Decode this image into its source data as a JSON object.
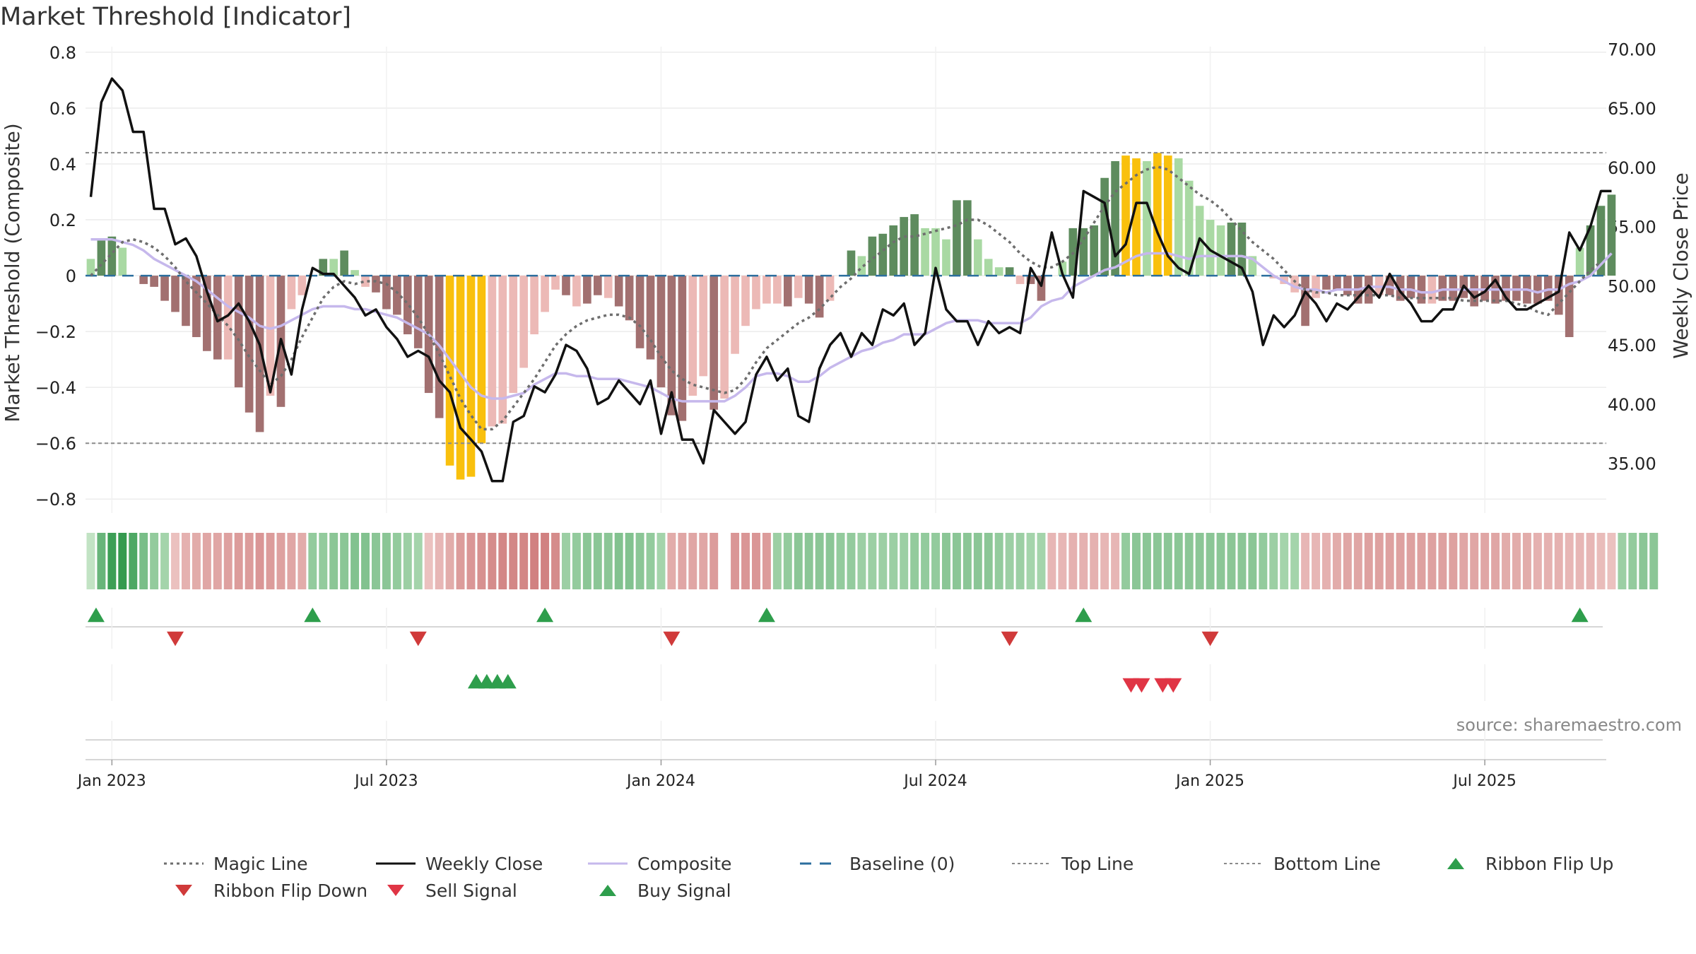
{
  "title": "Market Threshold [Indicator]",
  "source_note": "source: sharemaestro.com",
  "colors": {
    "bull_dark": "#5e8c5e",
    "bull_light": "#a9d9a3",
    "bear_dark": "#a27070",
    "bear_light": "#ecb9b6",
    "extreme": "#f9c00d",
    "close": "#111111",
    "composite": "#c6b8ec",
    "magic": "#6e6e6e",
    "baseline": "#2b6e9e",
    "threshold": "#8a8a8a",
    "buy": "#2e9e4c",
    "sell": "#e03545"
  },
  "chart_data": {
    "type": "bar",
    "title": "Market Threshold [Indicator]",
    "ylabel_left": "Market Threshold (Composite)",
    "ylabel_right": "Weekly Close Price",
    "ylim_left": [
      -0.85,
      0.82
    ],
    "ylim_right": [
      30.8,
      70.2
    ],
    "yticks_left": [
      "0.8",
      "0.6",
      "0.4",
      "0.2",
      "0",
      "−0.2",
      "−0.4",
      "−0.6",
      "−0.8"
    ],
    "ytick_values_left": [
      0.8,
      0.6,
      0.4,
      0.2,
      0,
      -0.2,
      -0.4,
      -0.6,
      -0.8
    ],
    "yticks_right": [
      "70.00",
      "65.00",
      "60.00",
      "55.00",
      "50.00",
      "45.00",
      "40.00",
      "35.00"
    ],
    "ytick_values_right": [
      70,
      65,
      60,
      55,
      50,
      45,
      40,
      35
    ],
    "xticks": [
      "Jan 2023",
      "Jul 2023",
      "Jan 2024",
      "Jul 2024",
      "Jan 2025",
      "Jul 2025"
    ],
    "xtick_weeks": [
      2,
      28,
      54,
      80,
      106,
      132
    ],
    "weeks": 144,
    "grid": true,
    "top_line": 0.44,
    "bottom_line": -0.6,
    "baseline": 0,
    "bars": [
      0.06,
      0.13,
      0.14,
      0.1,
      0,
      -0.03,
      -0.04,
      -0.09,
      -0.13,
      -0.18,
      -0.22,
      -0.27,
      -0.3,
      -0.3,
      -0.4,
      -0.49,
      -0.56,
      -0.43,
      -0.47,
      -0.12,
      -0.07,
      0,
      0.06,
      0.06,
      0.09,
      0.02,
      -0.04,
      -0.06,
      -0.12,
      -0.14,
      -0.21,
      -0.26,
      -0.42,
      -0.51,
      -0.68,
      -0.73,
      -0.72,
      -0.6,
      -0.54,
      -0.53,
      -0.42,
      -0.33,
      -0.21,
      -0.13,
      -0.05,
      -0.07,
      -0.11,
      -0.1,
      -0.07,
      -0.08,
      -0.11,
      -0.16,
      -0.26,
      -0.3,
      -0.4,
      -0.5,
      -0.52,
      -0.43,
      -0.36,
      -0.48,
      -0.44,
      -0.28,
      -0.18,
      -0.12,
      -0.1,
      -0.1,
      -0.11,
      -0.08,
      -0.1,
      -0.15,
      -0.09,
      0,
      0.09,
      0.07,
      0.14,
      0.15,
      0.18,
      0.21,
      0.22,
      0.17,
      0.17,
      0.13,
      0.27,
      0.27,
      0.13,
      0.06,
      0.03,
      0.03,
      -0.03,
      -0.03,
      -0.09,
      0,
      0.05,
      0.17,
      0.17,
      0.18,
      0.35,
      0.41,
      0.43,
      0.42,
      0.41,
      0.44,
      0.43,
      0.42,
      0.34,
      0.25,
      0.2,
      0.18,
      0.19,
      0.19,
      0.07,
      0,
      -0.01,
      -0.03,
      -0.06,
      -0.18,
      -0.08,
      -0.05,
      -0.05,
      -0.07,
      -0.1,
      -0.1,
      -0.07,
      -0.07,
      -0.09,
      -0.08,
      -0.1,
      -0.1,
      -0.09,
      -0.09,
      -0.08,
      -0.11,
      -0.09,
      -0.1,
      -0.09,
      -0.09,
      -0.1,
      -0.1,
      -0.09,
      -0.14,
      -0.22,
      0.1,
      0.18,
      0.25,
      0.29
    ],
    "bar_shades": [
      "bull_light",
      "bull_dark",
      "bull_dark",
      "bull_light",
      "bull_light",
      "bear_dark",
      "bear_dark",
      "bear_dark",
      "bear_dark",
      "bear_dark",
      "bear_dark",
      "bear_dark",
      "bear_dark",
      "bear_light",
      "bear_dark",
      "bear_dark",
      "bear_dark",
      "bear_light",
      "bear_dark",
      "bear_light",
      "bear_light",
      "bull_light",
      "bull_dark",
      "bull_light",
      "bull_dark",
      "bull_light",
      "bear_light",
      "bear_dark",
      "bear_dark",
      "bear_dark",
      "bear_dark",
      "bear_dark",
      "bear_dark",
      "bear_dark",
      "extreme",
      "extreme",
      "extreme",
      "extreme",
      "bear_light",
      "bear_light",
      "bear_light",
      "bear_light",
      "bear_light",
      "bear_light",
      "bear_light",
      "bear_dark",
      "bear_light",
      "bear_dark",
      "bear_dark",
      "bear_light",
      "bear_dark",
      "bear_dark",
      "bear_dark",
      "bear_dark",
      "bear_dark",
      "bear_dark",
      "bear_dark",
      "bear_light",
      "bear_light",
      "bear_dark",
      "bear_light",
      "bear_light",
      "bear_light",
      "bear_light",
      "bear_light",
      "bear_light",
      "bear_dark",
      "bear_light",
      "bear_dark",
      "bear_dark",
      "bear_light",
      "bull_light",
      "bull_dark",
      "bull_light",
      "bull_dark",
      "bull_dark",
      "bull_dark",
      "bull_dark",
      "bull_dark",
      "bull_light",
      "bull_light",
      "bull_light",
      "bull_dark",
      "bull_dark",
      "bull_light",
      "bull_light",
      "bull_light",
      "bull_dark",
      "bear_light",
      "bear_dark",
      "bear_dark",
      "bull_light",
      "bull_light",
      "bull_dark",
      "bull_dark",
      "bull_dark",
      "bull_dark",
      "bull_dark",
      "extreme",
      "extreme",
      "bull_light",
      "extreme",
      "extreme",
      "bull_light",
      "bull_light",
      "bull_light",
      "bull_light",
      "bull_light",
      "bull_dark",
      "bull_dark",
      "bull_light",
      "bull_light",
      "bear_light",
      "bear_light",
      "bear_light",
      "bear_dark",
      "bear_light",
      "bear_dark",
      "bear_dark",
      "bear_dark",
      "bear_dark",
      "bear_dark",
      "bear_light",
      "bear_dark",
      "bear_dark",
      "bear_dark",
      "bear_dark",
      "bear_light",
      "bear_dark",
      "bear_dark",
      "bear_dark",
      "bear_dark",
      "bear_dark",
      "bear_dark",
      "bear_dark",
      "bear_dark",
      "bear_dark",
      "bear_dark",
      "bear_dark",
      "bear_dark",
      "bear_dark",
      "bull_light",
      "bull_dark",
      "bull_dark",
      "bull_dark"
    ],
    "series": [
      {
        "name": "Magic Line",
        "axis": "left",
        "values": [
          0.0,
          0.04,
          0.08,
          0.12,
          0.13,
          0.12,
          0.1,
          0.07,
          0.03,
          -0.02,
          -0.06,
          -0.1,
          -0.14,
          -0.18,
          -0.23,
          -0.29,
          -0.34,
          -0.39,
          -0.36,
          -0.3,
          -0.22,
          -0.15,
          -0.08,
          -0.04,
          -0.02,
          -0.03,
          -0.02,
          -0.02,
          -0.03,
          -0.06,
          -0.1,
          -0.15,
          -0.21,
          -0.28,
          -0.36,
          -0.44,
          -0.5,
          -0.55,
          -0.55,
          -0.52,
          -0.47,
          -0.42,
          -0.37,
          -0.31,
          -0.25,
          -0.21,
          -0.18,
          -0.16,
          -0.15,
          -0.14,
          -0.14,
          -0.15,
          -0.18,
          -0.23,
          -0.29,
          -0.34,
          -0.37,
          -0.39,
          -0.4,
          -0.41,
          -0.42,
          -0.41,
          -0.37,
          -0.31,
          -0.26,
          -0.23,
          -0.2,
          -0.17,
          -0.15,
          -0.12,
          -0.08,
          -0.04,
          -0.01,
          0.03,
          0.06,
          0.09,
          0.12,
          0.14,
          0.14,
          0.15,
          0.16,
          0.17,
          0.18,
          0.2,
          0.2,
          0.18,
          0.15,
          0.12,
          0.08,
          0.05,
          0.03,
          0.03,
          0.05,
          0.08,
          0.13,
          0.19,
          0.25,
          0.3,
          0.33,
          0.36,
          0.38,
          0.39,
          0.38,
          0.35,
          0.32,
          0.29,
          0.27,
          0.24,
          0.2,
          0.16,
          0.12,
          0.09,
          0.06,
          0.02,
          -0.02,
          -0.05,
          -0.06,
          -0.06,
          -0.07,
          -0.07,
          -0.07,
          -0.07,
          -0.07,
          -0.07,
          -0.08,
          -0.08,
          -0.08,
          -0.08,
          -0.08,
          -0.08,
          -0.09,
          -0.09,
          -0.09,
          -0.09,
          -0.09,
          -0.1,
          -0.11,
          -0.13,
          -0.14,
          -0.1,
          -0.06,
          -0.02,
          0.02,
          0.05
        ]
      },
      {
        "name": "Weekly Close",
        "axis": "right",
        "values": [
          57.5,
          65.5,
          67.5,
          66.5,
          63.0,
          63.0,
          56.5,
          56.5,
          53.5,
          54.0,
          52.5,
          49.5,
          47.0,
          47.5,
          48.5,
          47.0,
          45.0,
          41.0,
          45.5,
          42.5,
          48.0,
          51.5,
          51.0,
          51.0,
          50.0,
          49.0,
          47.5,
          48.0,
          46.5,
          45.5,
          44.0,
          44.5,
          44.0,
          42.0,
          41.0,
          38.0,
          37.0,
          36.0,
          33.5,
          33.5,
          38.5,
          39.0,
          41.5,
          41.0,
          42.5,
          45.0,
          44.5,
          43.0,
          40.0,
          40.5,
          42.0,
          41.0,
          40.0,
          42.0,
          37.5,
          41.0,
          37.0,
          37.0,
          35.0,
          39.5,
          38.5,
          37.5,
          38.5,
          42.5,
          44.0,
          42.0,
          43.0,
          39.0,
          38.5,
          43.0,
          45.0,
          46.0,
          44.0,
          46.0,
          45.0,
          48.0,
          47.5,
          48.5,
          45.0,
          46.0,
          51.5,
          48.0,
          47.0,
          47.0,
          45.0,
          47.0,
          46.0,
          46.5,
          46.0,
          51.5,
          50.0,
          54.5,
          51.0,
          49.0,
          58.0,
          57.5,
          57.0,
          52.5,
          53.5,
          57.0,
          57.0,
          54.5,
          52.5,
          51.5,
          51.0,
          54.0,
          53.0,
          52.5,
          52.0,
          51.5,
          49.5,
          45.0,
          47.5,
          46.5,
          47.5,
          49.5,
          48.5,
          47.0,
          48.5,
          48.0,
          49.0,
          50.0,
          49.0,
          51.0,
          49.5,
          48.5,
          47.0,
          47.0,
          48.0,
          48.0,
          50.0,
          49.0,
          49.5,
          50.5,
          49.0,
          48.0,
          48.0,
          48.5,
          49.0,
          49.5,
          54.5,
          53.0,
          55.0,
          58.0,
          58.0
        ]
      },
      {
        "name": "Composite",
        "axis": "left",
        "values": [
          0.13,
          0.13,
          0.13,
          0.12,
          0.11,
          0.09,
          0.06,
          0.04,
          0.02,
          0.0,
          -0.02,
          -0.05,
          -0.08,
          -0.11,
          -0.13,
          -0.15,
          -0.18,
          -0.19,
          -0.18,
          -0.16,
          -0.14,
          -0.12,
          -0.11,
          -0.11,
          -0.11,
          -0.12,
          -0.12,
          -0.13,
          -0.14,
          -0.15,
          -0.17,
          -0.19,
          -0.21,
          -0.25,
          -0.3,
          -0.35,
          -0.4,
          -0.43,
          -0.44,
          -0.44,
          -0.43,
          -0.42,
          -0.39,
          -0.37,
          -0.35,
          -0.35,
          -0.36,
          -0.36,
          -0.37,
          -0.37,
          -0.37,
          -0.38,
          -0.39,
          -0.4,
          -0.42,
          -0.44,
          -0.45,
          -0.45,
          -0.45,
          -0.45,
          -0.45,
          -0.43,
          -0.4,
          -0.36,
          -0.35,
          -0.35,
          -0.36,
          -0.38,
          -0.38,
          -0.36,
          -0.33,
          -0.31,
          -0.29,
          -0.27,
          -0.26,
          -0.24,
          -0.23,
          -0.21,
          -0.21,
          -0.21,
          -0.19,
          -0.17,
          -0.16,
          -0.16,
          -0.16,
          -0.17,
          -0.17,
          -0.17,
          -0.17,
          -0.15,
          -0.11,
          -0.09,
          -0.08,
          -0.04,
          -0.02,
          0.0,
          0.02,
          0.03,
          0.05,
          0.07,
          0.08,
          0.08,
          0.08,
          0.07,
          0.06,
          0.07,
          0.07,
          0.07,
          0.07,
          0.07,
          0.06,
          0.03,
          0.0,
          -0.02,
          -0.04,
          -0.05,
          -0.05,
          -0.06,
          -0.05,
          -0.05,
          -0.05,
          -0.04,
          -0.04,
          -0.04,
          -0.05,
          -0.05,
          -0.06,
          -0.06,
          -0.05,
          -0.05,
          -0.05,
          -0.05,
          -0.05,
          -0.05,
          -0.05,
          -0.05,
          -0.05,
          -0.06,
          -0.05,
          -0.05,
          -0.03,
          -0.02,
          0.0,
          0.04,
          0.08
        ]
      },
      {
        "name": "Baseline (0)",
        "axis": "left",
        "values": [
          0
        ]
      },
      {
        "name": "Top Line",
        "axis": "left",
        "values": [
          0.44
        ]
      },
      {
        "name": "Bottom Line",
        "axis": "left",
        "values": [
          -0.6
        ]
      }
    ],
    "ribbon": [
      0.13,
      0.65,
      0.9,
      0.95,
      0.8,
      0.55,
      0.4,
      0.3,
      -0.2,
      -0.35,
      -0.4,
      -0.45,
      -0.45,
      -0.5,
      -0.55,
      -0.55,
      -0.6,
      -0.55,
      -0.5,
      -0.45,
      -0.4,
      0.4,
      0.4,
      0.45,
      0.45,
      0.5,
      0.5,
      0.45,
      0.45,
      0.4,
      0.35,
      0.3,
      -0.2,
      -0.3,
      -0.4,
      -0.55,
      -0.6,
      -0.65,
      -0.7,
      -0.75,
      -0.75,
      -0.75,
      -0.8,
      -0.8,
      -0.7,
      0.35,
      0.4,
      0.45,
      0.45,
      0.45,
      0.5,
      0.5,
      0.45,
      0.4,
      0.3,
      -0.4,
      -0.45,
      -0.45,
      -0.45,
      -0.55,
      null,
      -0.6,
      -0.6,
      -0.6,
      -0.55,
      0.35,
      0.4,
      0.45,
      0.45,
      0.45,
      0.45,
      0.4,
      0.4,
      0.35,
      0.35,
      0.35,
      0.35,
      0.35,
      0.4,
      0.4,
      0.4,
      0.45,
      0.45,
      0.45,
      0.45,
      0.45,
      0.4,
      0.35,
      0.35,
      0.3,
      0.3,
      -0.3,
      -0.3,
      -0.35,
      -0.35,
      -0.35,
      -0.3,
      -0.3,
      0.4,
      0.45,
      0.45,
      0.45,
      0.45,
      0.45,
      0.45,
      0.45,
      0.45,
      0.45,
      0.45,
      0.45,
      0.45,
      0.4,
      0.35,
      0.3,
      0.3,
      -0.3,
      -0.3,
      -0.35,
      -0.4,
      -0.45,
      -0.45,
      -0.5,
      -0.5,
      -0.5,
      -0.5,
      -0.5,
      -0.5,
      -0.5,
      -0.5,
      -0.5,
      -0.45,
      -0.45,
      -0.45,
      -0.45,
      -0.4,
      -0.4,
      -0.4,
      -0.35,
      -0.35,
      -0.35,
      -0.3,
      -0.3,
      -0.3,
      -0.25,
      -0.2,
      0.35,
      0.4,
      0.45,
      0.45
    ],
    "markers": [
      {
        "name": "Ribbon Flip Up",
        "row": "flips",
        "shape": "up",
        "color": "buy",
        "weeks": [
          0.5,
          21,
          43,
          64,
          94,
          141
        ]
      },
      {
        "name": "Ribbon Flip Down",
        "row": "flips",
        "shape": "down",
        "color": "buy_dark_red",
        "weeks": [
          8,
          31,
          55,
          87,
          106
        ]
      },
      {
        "name": "Sell Signal",
        "row": "signals",
        "shape": "down",
        "color": "sell",
        "weeks": [
          98.5,
          99.5,
          101.5,
          102.5
        ]
      },
      {
        "name": "Buy Signal",
        "row": "signals",
        "shape": "up",
        "color": "buy",
        "weeks": [
          36.5,
          37.5,
          38.5,
          39.5
        ]
      }
    ]
  },
  "legend": [
    {
      "label": "Magic Line",
      "symbol": "dotted",
      "color": "#6e6e6e"
    },
    {
      "label": "Weekly Close",
      "symbol": "solid",
      "color": "#111111"
    },
    {
      "label": "Composite",
      "symbol": "solid",
      "color": "#c6b8ec"
    },
    {
      "label": "Baseline (0)",
      "symbol": "dashed",
      "color": "#2b6e9e"
    },
    {
      "label": "Top Line",
      "symbol": "thin-dotted",
      "color": "#8a8a8a"
    },
    {
      "label": "Bottom Line",
      "symbol": "thin-dotted",
      "color": "#8a8a8a"
    },
    {
      "label": "Ribbon Flip Up",
      "symbol": "triangle-up",
      "color": "#2e9e4c"
    },
    {
      "label": "Ribbon Flip Down",
      "symbol": "triangle-down",
      "color": "#d03a3a"
    },
    {
      "label": "Sell Signal",
      "symbol": "triangle-down",
      "color": "#e03545"
    },
    {
      "label": "Buy Signal",
      "symbol": "triangle-up",
      "color": "#2e9e4c"
    }
  ]
}
